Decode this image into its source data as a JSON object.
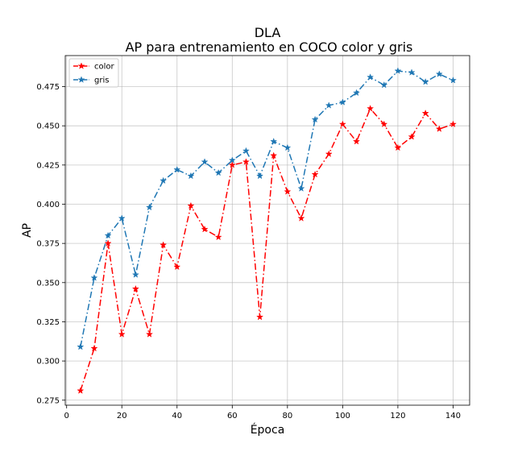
{
  "chart_data": {
    "type": "line",
    "title": "DLA",
    "subtitle": "AP para entrenamiento en COCO color y gris",
    "xlabel": "Época",
    "ylabel": "AP",
    "xlim": [
      -0.5,
      146
    ],
    "ylim": [
      0.2718,
      0.4948
    ],
    "xticks": [
      0,
      20,
      40,
      60,
      80,
      100,
      120,
      140
    ],
    "yticks": [
      0.275,
      0.3,
      0.325,
      0.35,
      0.375,
      0.4,
      0.425,
      0.45,
      0.475
    ],
    "xtick_labels": [
      "0",
      "20",
      "40",
      "60",
      "80",
      "100",
      "120",
      "140"
    ],
    "ytick_labels": [
      "0.275",
      "0.300",
      "0.325",
      "0.350",
      "0.375",
      "0.400",
      "0.425",
      "0.450",
      "0.475"
    ],
    "grid": true,
    "legend_position": "top-left",
    "x": [
      5,
      10,
      15,
      20,
      25,
      30,
      35,
      40,
      45,
      50,
      55,
      60,
      65,
      70,
      75,
      80,
      85,
      90,
      95,
      100,
      105,
      110,
      115,
      120,
      125,
      130,
      135,
      140
    ],
    "series": [
      {
        "name": "color",
        "color": "#ff0000",
        "marker": "star",
        "linestyle": "dashdot",
        "values": [
          0.281,
          0.308,
          0.375,
          0.317,
          0.346,
          0.317,
          0.374,
          0.36,
          0.399,
          0.384,
          0.379,
          0.425,
          0.427,
          0.328,
          0.431,
          0.408,
          0.391,
          0.419,
          0.432,
          0.451,
          0.44,
          0.461,
          0.451,
          0.436,
          0.443,
          0.458,
          0.448,
          0.451
        ]
      },
      {
        "name": "gris",
        "color": "#1f77b4",
        "marker": "star",
        "linestyle": "dashdot",
        "values": [
          0.309,
          0.353,
          0.38,
          0.391,
          0.355,
          0.398,
          0.415,
          0.422,
          0.418,
          0.427,
          0.42,
          0.428,
          0.434,
          0.418,
          0.44,
          0.436,
          0.41,
          0.454,
          0.463,
          0.465,
          0.471,
          0.481,
          0.476,
          0.485,
          0.484,
          0.478,
          0.483,
          0.479
        ]
      }
    ]
  }
}
